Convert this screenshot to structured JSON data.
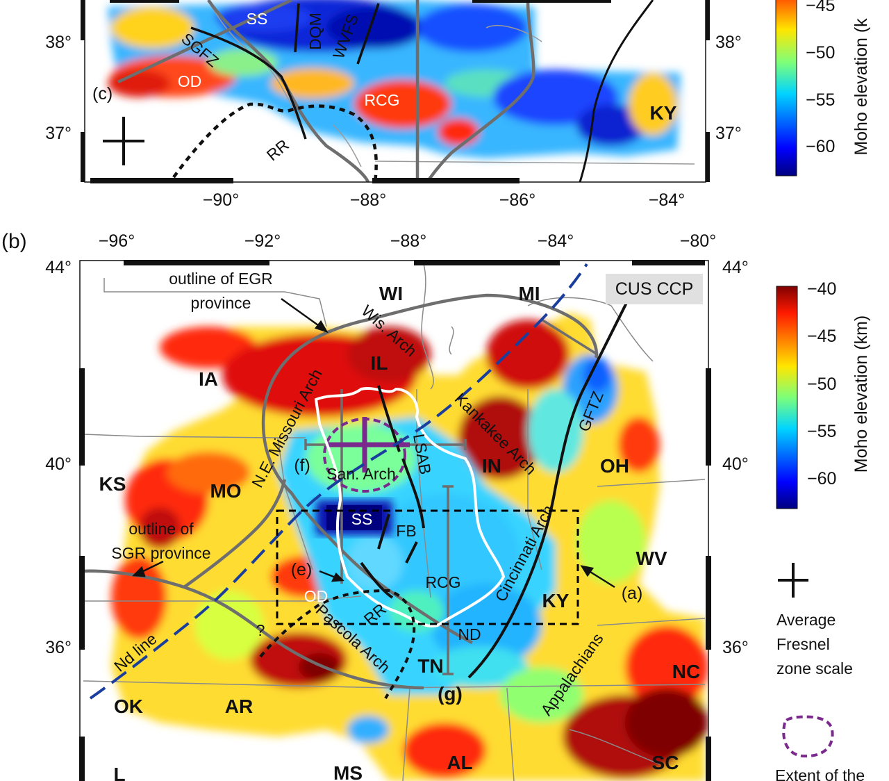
{
  "panel_a": {
    "lat_ticks": [
      "38°",
      "37°"
    ],
    "lon_ticks": [
      "−90°",
      "−88°",
      "−86°",
      "−84°"
    ],
    "regions": {
      "SS": "SS",
      "DQM": "DQM",
      "WVFS": "WVFS",
      "SGFZ": "SGFZ",
      "OD": "OD",
      "RCG": "RCG",
      "RR": "RR",
      "KY": "KY"
    },
    "profile_label": "(c)"
  },
  "colorbar_top": {
    "ticks": [
      "−45",
      "−50",
      "−55",
      "−60"
    ],
    "label": "Moho elevation (k"
  },
  "panel_b": {
    "panel_label": "(b)",
    "lon_ticks": [
      "−96°",
      "−92°",
      "−88°",
      "−84°",
      "−80°"
    ],
    "lat_ticks": [
      "44°",
      "40°",
      "36°"
    ],
    "title_box": "CUS CCP",
    "states": {
      "WI": "WI",
      "MI": "MI",
      "IA": "IA",
      "IL": "IL",
      "IN": "IN",
      "OH": "OH",
      "KS": "KS",
      "MO": "MO",
      "WV": "WV",
      "KY": "KY",
      "OK": "OK",
      "AR": "AR",
      "TN": "TN",
      "NC": "NC",
      "MS": "MS",
      "AL": "AL",
      "SC": "SC",
      "L": "L"
    },
    "features": {
      "wis_arch": "Wis. Arch",
      "ne_missouri_arch": "N.E. Missouri Arch",
      "kankakee_arch": "Kankakee Arch",
      "gftz": "GFTZ",
      "lsab": "LSAB",
      "san_arch": "San. Arch",
      "ss": "SS",
      "fb": "FB",
      "rcg": "RCG",
      "od": "OD",
      "rr": "RR",
      "pascola_arch": "Pascola Arch",
      "nd": "ND",
      "cincinnati_arch": "Cincinnati Arch",
      "appalachians": "Appalachians",
      "nd_line": "Nd line",
      "question": "?"
    },
    "annotations": {
      "egr_line1": "outline of EGR",
      "egr_line2": "province",
      "sgr_line1": "outline of",
      "sgr_line2": "SGR province",
      "label_f": "(f)",
      "label_e": "(e)",
      "label_a": "(a)",
      "label_g": "(g)"
    }
  },
  "colorbar_bottom": {
    "ticks": [
      "−40",
      "−45",
      "−50",
      "−55",
      "−60"
    ],
    "label": "Moho elevation (km)"
  },
  "legend": {
    "fresnel_line1": "Average",
    "fresnel_line2": "Fresnel",
    "fresnel_line3": "zone scale",
    "extent_text": "Extent of the"
  },
  "colors": {
    "gray_line": "#6e6e6e",
    "nd_line": "#1a3e9e",
    "purple": "#7a2a8c",
    "dashed_box": "#000000"
  }
}
